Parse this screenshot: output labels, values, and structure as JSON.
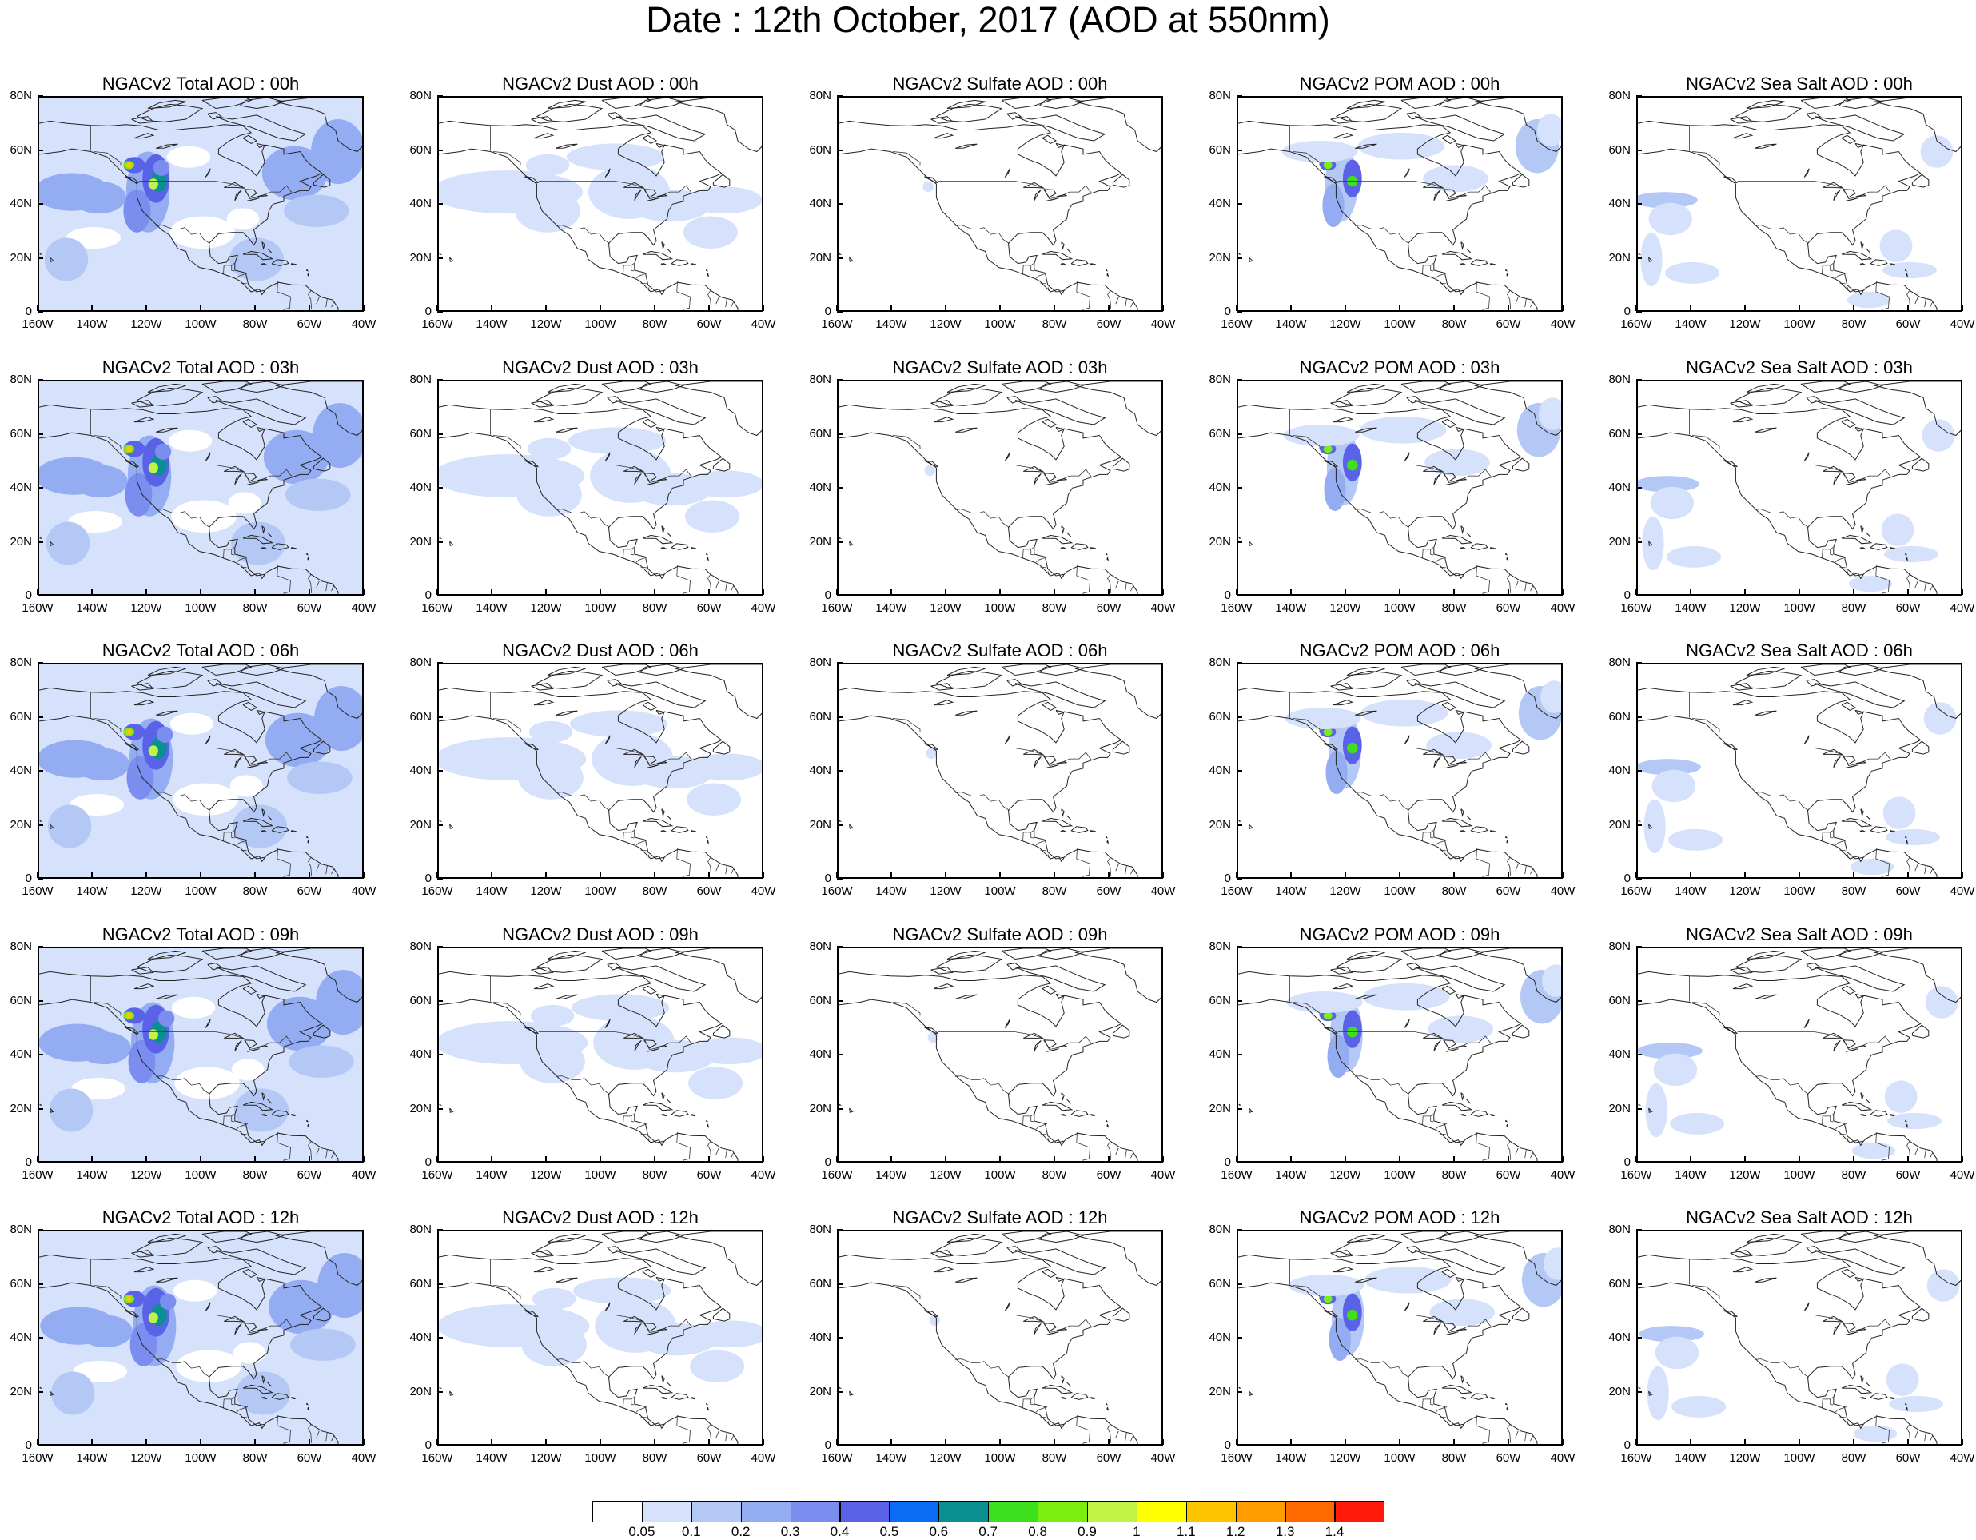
{
  "title": "Date : 12th October, 2017 (AOD at 550nm)",
  "lat_labels": [
    "80N",
    "60N",
    "40N",
    "20N",
    "0"
  ],
  "lon_labels": [
    "160W",
    "140W",
    "120W",
    "100W",
    "80W",
    "60W",
    "40W"
  ],
  "species": [
    "total",
    "dust",
    "sulfate",
    "pom",
    "seasalt"
  ],
  "hours": [
    "00h",
    "03h",
    "06h",
    "09h",
    "12h"
  ],
  "panel_titles": [
    [
      "NGACv2 Total AOD : 00h",
      "NGACv2 Dust AOD : 00h",
      "NGACv2 Sulfate AOD : 00h",
      "NGACv2 POM AOD : 00h",
      "NGACv2 Sea Salt AOD : 00h"
    ],
    [
      "NGACv2 Total AOD : 03h",
      "NGACv2 Dust AOD : 03h",
      "NGACv2 Sulfate AOD : 03h",
      "NGACv2 POM AOD : 03h",
      "NGACv2 Sea Salt AOD : 03h"
    ],
    [
      "NGACv2 Total AOD : 06h",
      "NGACv2 Dust AOD : 06h",
      "NGACv2 Sulfate AOD : 06h",
      "NGACv2 POM AOD : 06h",
      "NGACv2 Sea Salt AOD : 06h"
    ],
    [
      "NGACv2 Total AOD : 09h",
      "NGACv2 Dust AOD : 09h",
      "NGACv2 Sulfate AOD : 09h",
      "NGACv2 POM AOD : 09h",
      "NGACv2 Sea Salt  AOD : 09h"
    ],
    [
      "NGACv2 Total AOD  : 12h",
      "NGACv2 Dust AOD : 12h",
      "NGACv2 Sulfate AOD : 12h",
      "NGACv2 POM  AOD : 12h",
      "NGACv2 Sea Salt  AOD : 12h"
    ]
  ],
  "colorbar": {
    "labels": [
      "0.05",
      "0.1",
      "0.2",
      "0.3",
      "0.4",
      "0.5",
      "0.6",
      "0.7",
      "0.8",
      "0.9",
      "1",
      "1.1",
      "1.2",
      "1.3",
      "1.4"
    ],
    "colors": [
      "#ffffff",
      "#d6e2fb",
      "#b4c8f6",
      "#94acf2",
      "#7b8ef0",
      "#5a63e8",
      "#0a6cf5",
      "#0a9090",
      "#3ee01e",
      "#79ee10",
      "#bff446",
      "#ffff00",
      "#ffc400",
      "#ff9c00",
      "#ff6a00",
      "#ff1a0a"
    ]
  }
}
